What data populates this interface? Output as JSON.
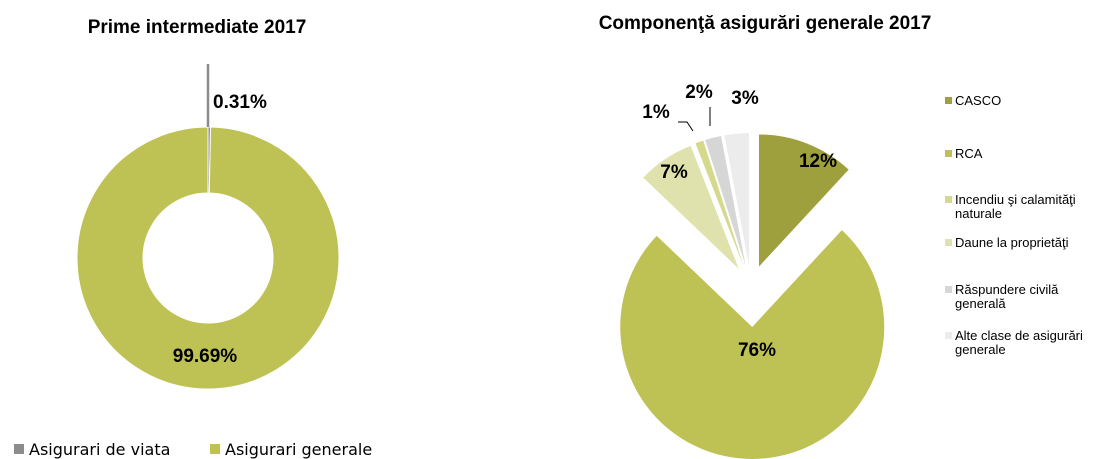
{
  "chart_data": [
    {
      "type": "donut",
      "title": "Prime intermediate 2017",
      "series": [
        {
          "name": "Asigurari de viata",
          "value": 0.31,
          "label": "0.31%",
          "color": "#8c8c8c"
        },
        {
          "name": "Asigurari generale",
          "value": 99.69,
          "label": "99.69%",
          "color": "#bec254"
        }
      ],
      "legend": "bottom"
    },
    {
      "type": "pie",
      "title": "Componenţă asigurări generale 2017",
      "series": [
        {
          "name": "CASCO",
          "value": 12,
          "label": "12%",
          "color": "#9ea03d"
        },
        {
          "name": "RCA",
          "value": 76,
          "label": "76%",
          "color": "#bec254"
        },
        {
          "name": "Incendiu şi calamităţi naturale",
          "name_lines": [
            "Incendiu şi calamităţi",
            "naturale"
          ],
          "value": 1,
          "label": "1%",
          "color": "#d5d98c"
        },
        {
          "name": "Daune la proprietăţi",
          "name_lines": [
            "Daune la proprietăţi"
          ],
          "value": 7,
          "label": "7%",
          "color": "#dfe2ad"
        },
        {
          "name": "Răspundere civilă generală",
          "name_lines": [
            "Răspundere civilă",
            "generală"
          ],
          "value": 2,
          "label": "2%",
          "color": "#d6d6d6"
        },
        {
          "name": "Alte clase de asigurări generale",
          "name_lines": [
            "Alte clase de asigurări",
            "generale"
          ],
          "value": 3,
          "label": "3%",
          "color": "#ececec"
        }
      ],
      "legend": "right",
      "exploded": true
    }
  ]
}
